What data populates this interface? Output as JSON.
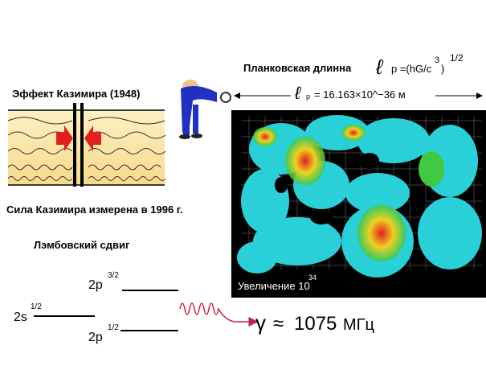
{
  "casimir": {
    "title": "Эффект Казимира (1948)",
    "measured": "Сила Казимира измерена в 1996 г."
  },
  "lamb": {
    "title": "Лэмбовский сдвиг",
    "levels": [
      {
        "name": "2p",
        "sub": "3/2"
      },
      {
        "name": "2s",
        "sub": "1/2"
      },
      {
        "name": "2p",
        "sub": "1/2"
      }
    ],
    "gamma": "γ",
    "approx": "≈",
    "value": "1075",
    "unit": "МГц"
  },
  "planck": {
    "title": "Планковская длинна",
    "ell": "ℓ",
    "formula": "p =(hG/c",
    "power": "3",
    "close": ")",
    "exp": "1/2",
    "sub": "p",
    "value": "= 16.163×10^−36 м"
  },
  "foam": {
    "caption": "Увеличение 10",
    "power": "34"
  }
}
